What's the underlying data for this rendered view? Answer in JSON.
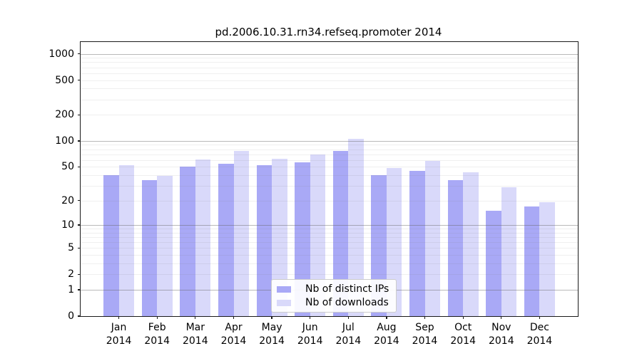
{
  "chart_data": {
    "type": "bar",
    "title": "pd.2006.10.31.rn34.refseq.promoter 2014",
    "categories": [
      "Jan 2014",
      "Feb 2014",
      "Mar 2014",
      "Apr 2014",
      "May 2014",
      "Jun 2014",
      "Jul 2014",
      "Aug 2014",
      "Sep 2014",
      "Oct 2014",
      "Nov 2014",
      "Dec 2014"
    ],
    "series": [
      {
        "name": "Nb of distinct IPs",
        "color": "#a9a9f6",
        "values": [
          40,
          35,
          50,
          54,
          52,
          56,
          76,
          40,
          45,
          35,
          15,
          17
        ]
      },
      {
        "name": "Nb of downloads",
        "color": "#d9d9fa",
        "values": [
          52,
          39,
          61,
          77,
          62,
          70,
          106,
          48,
          59,
          43,
          29,
          19
        ]
      }
    ],
    "xlabel": "",
    "ylabel": "",
    "yscale": "log1p",
    "y_ticks": [
      1000,
      500,
      200,
      100,
      50,
      20,
      10,
      5,
      2,
      1,
      0
    ],
    "y_major_gridlines": [
      1,
      10,
      100,
      1000
    ],
    "ylim": [
      0,
      1300
    ],
    "grid": "horizontal, drawn over bars",
    "legend_position": "lower center"
  }
}
